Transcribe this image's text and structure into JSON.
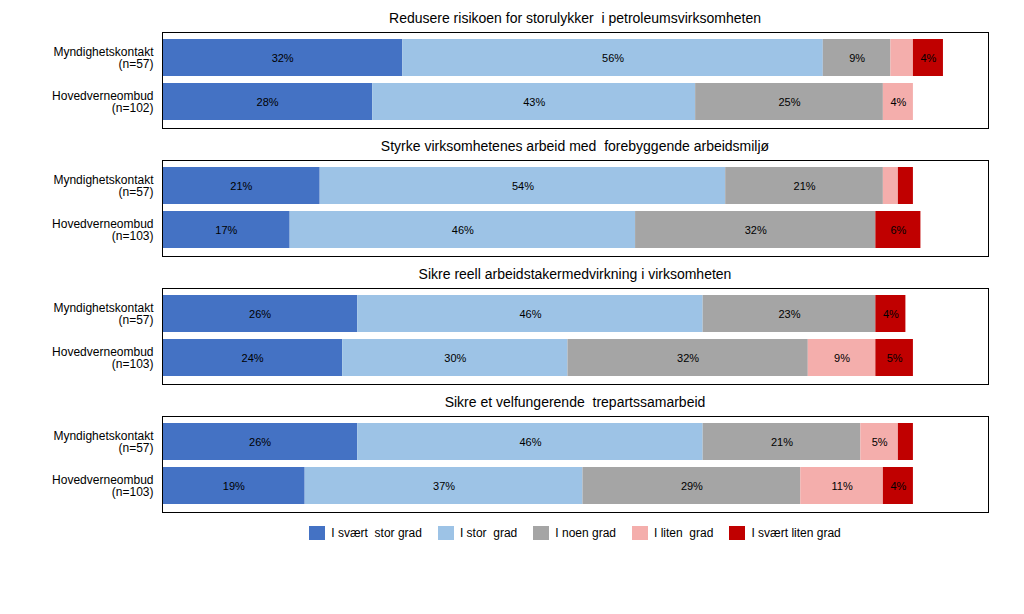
{
  "chart_data": [
    {
      "type": "bar",
      "orientation": "horizontal",
      "stacked": true,
      "data_labels": true,
      "tick_labels": "y",
      "title": "Redusere risikoen for storulykker  i petroleumsvirksomheten",
      "categories": [
        "Myndighetskontakt\n(n=57)",
        "Hovedverneombud\n(n=102)"
      ],
      "xlim": [
        0,
        110
      ],
      "series": [
        {
          "name": "I svært  stor grad",
          "color": "#4472C4",
          "values": [
            32,
            28
          ],
          "value_labels": [
            "32%",
            "28%"
          ]
        },
        {
          "name": "I stor  grad",
          "color": "#9DC3E6",
          "values": [
            56,
            43
          ],
          "value_labels": [
            "56%",
            "43%"
          ]
        },
        {
          "name": "I noen grad",
          "color": "#A5A5A5",
          "values": [
            9,
            25
          ],
          "value_labels": [
            "9%",
            "25%"
          ]
        },
        {
          "name": "I liten  grad",
          "color": "#F4AEAC",
          "values": [
            3,
            4
          ],
          "value_labels": [
            null,
            "4%"
          ]
        },
        {
          "name": "I svært liten grad",
          "color": "#C00000",
          "values": [
            4,
            0
          ],
          "value_labels": [
            "4%",
            null
          ]
        }
      ]
    },
    {
      "type": "bar",
      "orientation": "horizontal",
      "stacked": true,
      "data_labels": true,
      "tick_labels": "y",
      "title": "Styrke virksomhetenes arbeid med  forebyggende arbeidsmiljø",
      "categories": [
        "Myndighetskontakt\n(n=57)",
        "Hovedverneombud\n(n=103)"
      ],
      "xlim": [
        0,
        110
      ],
      "series": [
        {
          "name": "I svært  stor grad",
          "color": "#4472C4",
          "values": [
            21,
            17
          ],
          "value_labels": [
            "21%",
            "17%"
          ]
        },
        {
          "name": "I stor  grad",
          "color": "#9DC3E6",
          "values": [
            54,
            46
          ],
          "value_labels": [
            "54%",
            "46%"
          ]
        },
        {
          "name": "I noen grad",
          "color": "#A5A5A5",
          "values": [
            21,
            32
          ],
          "value_labels": [
            "21%",
            "32%"
          ]
        },
        {
          "name": "I liten  grad",
          "color": "#F4AEAC",
          "values": [
            2,
            0
          ],
          "value_labels": [
            null,
            null
          ]
        },
        {
          "name": "I svært liten grad",
          "color": "#C00000",
          "values": [
            2,
            6
          ],
          "value_labels": [
            null,
            "6%"
          ]
        }
      ]
    },
    {
      "type": "bar",
      "orientation": "horizontal",
      "stacked": true,
      "data_labels": true,
      "tick_labels": "y",
      "title": "Sikre reell arbeidstakermedvirkning i virksomheten",
      "categories": [
        "Myndighetskontakt\n(n=57)",
        "Hovedverneombud\n(n=103)"
      ],
      "xlim": [
        0,
        110
      ],
      "series": [
        {
          "name": "I svært  stor grad",
          "color": "#4472C4",
          "values": [
            26,
            24
          ],
          "value_labels": [
            "26%",
            "24%"
          ]
        },
        {
          "name": "I stor  grad",
          "color": "#9DC3E6",
          "values": [
            46,
            30
          ],
          "value_labels": [
            "46%",
            "30%"
          ]
        },
        {
          "name": "I noen grad",
          "color": "#A5A5A5",
          "values": [
            23,
            32
          ],
          "value_labels": [
            "23%",
            "32%"
          ]
        },
        {
          "name": "I liten  grad",
          "color": "#F4AEAC",
          "values": [
            0,
            9
          ],
          "value_labels": [
            null,
            "9%"
          ]
        },
        {
          "name": "I svært liten grad",
          "color": "#C00000",
          "values": [
            4,
            5
          ],
          "value_labels": [
            "4%",
            "5%"
          ]
        }
      ]
    },
    {
      "type": "bar",
      "orientation": "horizontal",
      "stacked": true,
      "data_labels": true,
      "tick_labels": "y",
      "title": "Sikre et velfungerende  trepartssamarbeid",
      "categories": [
        "Myndighetskontakt\n(n=57)",
        "Hovedverneombud\n(n=103)"
      ],
      "xlim": [
        0,
        110
      ],
      "legend": "bottom",
      "series": [
        {
          "name": "I svært  stor grad",
          "color": "#4472C4",
          "values": [
            26,
            19
          ],
          "value_labels": [
            "26%",
            "19%"
          ]
        },
        {
          "name": "I stor  grad",
          "color": "#9DC3E6",
          "values": [
            46,
            37
          ],
          "value_labels": [
            "46%",
            "37%"
          ]
        },
        {
          "name": "I noen grad",
          "color": "#A5A5A5",
          "values": [
            21,
            29
          ],
          "value_labels": [
            "21%",
            "29%"
          ]
        },
        {
          "name": "I liten  grad",
          "color": "#F4AEAC",
          "values": [
            5,
            11
          ],
          "value_labels": [
            "5%",
            "11%"
          ]
        },
        {
          "name": "I svært liten grad",
          "color": "#C00000",
          "values": [
            2,
            4
          ],
          "value_labels": [
            null,
            "4%"
          ]
        }
      ]
    }
  ]
}
